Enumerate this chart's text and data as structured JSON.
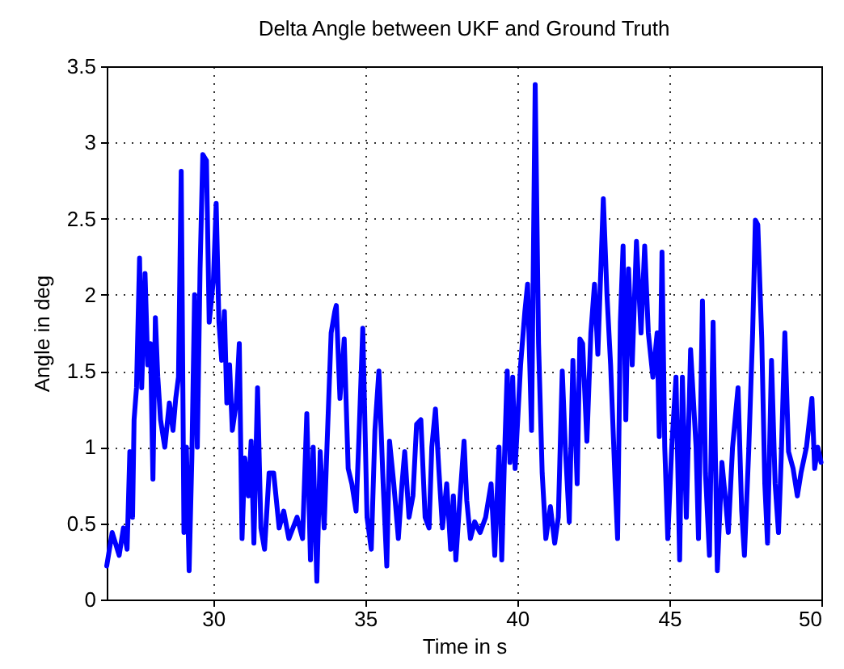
{
  "chart_data": {
    "type": "line",
    "title": "Delta Angle between UKF and Ground Truth",
    "xlabel": "Time in s",
    "ylabel": "Angle in deg",
    "xlim": [
      26.5,
      50
    ],
    "ylim": [
      0,
      3.5
    ],
    "xticks": [
      30,
      35,
      40,
      45,
      50
    ],
    "yticks": [
      0,
      0.5,
      1,
      1.5,
      2,
      2.5,
      3,
      3.5
    ],
    "grid": true,
    "line_style": "solid",
    "marker": "none",
    "x": [
      26.5,
      26.68,
      26.91,
      27.05,
      27.17,
      27.26,
      27.35,
      27.4,
      27.48,
      27.58,
      27.65,
      27.76,
      27.85,
      27.94,
      28.02,
      28.1,
      28.18,
      28.27,
      28.41,
      28.56,
      28.68,
      28.77,
      28.86,
      28.95,
      29.04,
      29.12,
      29.21,
      29.3,
      29.39,
      29.48,
      29.57,
      29.66,
      29.78,
      29.87,
      30.01,
      30.1,
      30.19,
      30.28,
      30.37,
      30.45,
      30.54,
      30.63,
      30.76,
      30.86,
      30.95,
      31.04,
      31.16,
      31.25,
      31.34,
      31.46,
      31.57,
      31.69,
      31.84,
      31.99,
      32.17,
      32.32,
      32.49,
      32.76,
      32.94,
      33.08,
      33.2,
      33.29,
      33.41,
      33.52,
      33.65,
      33.73,
      33.88,
      34.0,
      34.05,
      34.17,
      34.31,
      34.44,
      34.56,
      34.7,
      34.79,
      34.92,
      35.06,
      35.2,
      35.32,
      35.45,
      35.59,
      35.71,
      35.8,
      35.94,
      36.09,
      36.21,
      36.3,
      36.44,
      36.57,
      36.69,
      36.83,
      36.97,
      37.1,
      37.19,
      37.31,
      37.42,
      37.54,
      37.68,
      37.81,
      37.9,
      37.98,
      38.11,
      38.25,
      38.34,
      38.46,
      38.6,
      38.78,
      38.96,
      39.14,
      39.26,
      39.4,
      39.49,
      39.58,
      39.67,
      39.76,
      39.85,
      39.93,
      40.11,
      40.25,
      40.34,
      40.47,
      40.59,
      40.7,
      40.82,
      40.94,
      41.09,
      41.23,
      41.35,
      41.48,
      41.58,
      41.71,
      41.83,
      41.97,
      42.06,
      42.15,
      42.29,
      42.42,
      42.54,
      42.65,
      42.83,
      42.95,
      43.07,
      43.22,
      43.3,
      43.39,
      43.48,
      43.57,
      43.66,
      43.78,
      43.92,
      44.07,
      44.19,
      44.31,
      44.46,
      44.6,
      44.67,
      44.76,
      44.85,
      44.95,
      45.08,
      45.22,
      45.34,
      45.43,
      45.56,
      45.7,
      45.88,
      45.96,
      46.09,
      46.19,
      46.32,
      46.44,
      46.58,
      46.73,
      46.85,
      46.94,
      47.08,
      47.26,
      47.38,
      47.47,
      47.61,
      47.74,
      47.83,
      47.91,
      48.04,
      48.14,
      48.23,
      48.36,
      48.48,
      48.59,
      48.68,
      48.8,
      48.92,
      49.07,
      49.21,
      49.33,
      49.51,
      49.69,
      49.78,
      49.88,
      49.99
    ],
    "series": [
      {
        "color": "#0000ff",
        "values": [
          0.22,
          0.44,
          0.29,
          0.47,
          0.33,
          0.97,
          0.54,
          1.18,
          1.39,
          2.24,
          1.39,
          2.14,
          1.54,
          1.68,
          0.79,
          1.85,
          1.46,
          1.18,
          1.0,
          1.29,
          1.11,
          1.32,
          1.46,
          2.81,
          0.44,
          1.0,
          0.19,
          0.93,
          2.0,
          1.0,
          2.17,
          2.92,
          2.88,
          1.82,
          2.1,
          2.6,
          1.82,
          1.57,
          1.89,
          1.29,
          1.54,
          1.11,
          1.29,
          1.68,
          0.4,
          0.93,
          0.68,
          1.04,
          0.37,
          1.39,
          0.47,
          0.33,
          0.83,
          0.83,
          0.47,
          0.58,
          0.4,
          0.54,
          0.4,
          1.22,
          0.26,
          1.0,
          0.12,
          0.97,
          0.47,
          0.93,
          1.75,
          1.89,
          1.93,
          1.32,
          1.71,
          0.86,
          0.76,
          0.58,
          1.04,
          1.78,
          0.54,
          0.33,
          1.11,
          1.5,
          0.76,
          0.22,
          1.04,
          0.76,
          0.4,
          0.76,
          0.97,
          0.54,
          0.68,
          1.15,
          1.18,
          0.54,
          0.47,
          1.0,
          1.25,
          0.86,
          0.47,
          0.76,
          0.33,
          0.68,
          0.26,
          0.65,
          1.04,
          0.65,
          0.4,
          0.51,
          0.44,
          0.54,
          0.76,
          0.29,
          1.0,
          0.26,
          0.93,
          1.5,
          0.9,
          1.46,
          0.86,
          1.54,
          1.89,
          2.07,
          1.11,
          3.38,
          1.68,
          0.83,
          0.4,
          0.61,
          0.37,
          0.54,
          1.5,
          1.0,
          0.51,
          1.57,
          0.76,
          1.71,
          1.68,
          1.04,
          1.75,
          2.07,
          1.61,
          2.63,
          2.0,
          1.54,
          0.76,
          0.4,
          1.82,
          2.32,
          1.18,
          2.17,
          1.54,
          2.35,
          1.75,
          2.32,
          1.75,
          1.46,
          1.75,
          1.07,
          2.28,
          1.0,
          0.4,
          1.0,
          1.46,
          0.26,
          1.46,
          0.54,
          1.64,
          1.0,
          0.4,
          1.96,
          0.83,
          0.29,
          1.82,
          0.19,
          0.9,
          0.65,
          0.44,
          1.0,
          1.39,
          0.58,
          0.29,
          0.97,
          1.75,
          2.49,
          2.46,
          1.71,
          0.76,
          0.37,
          1.57,
          0.76,
          0.44,
          0.93,
          1.75,
          0.97,
          0.86,
          0.68,
          0.83,
          1.0,
          1.32,
          0.86,
          1.0,
          0.9
        ]
      }
    ]
  }
}
